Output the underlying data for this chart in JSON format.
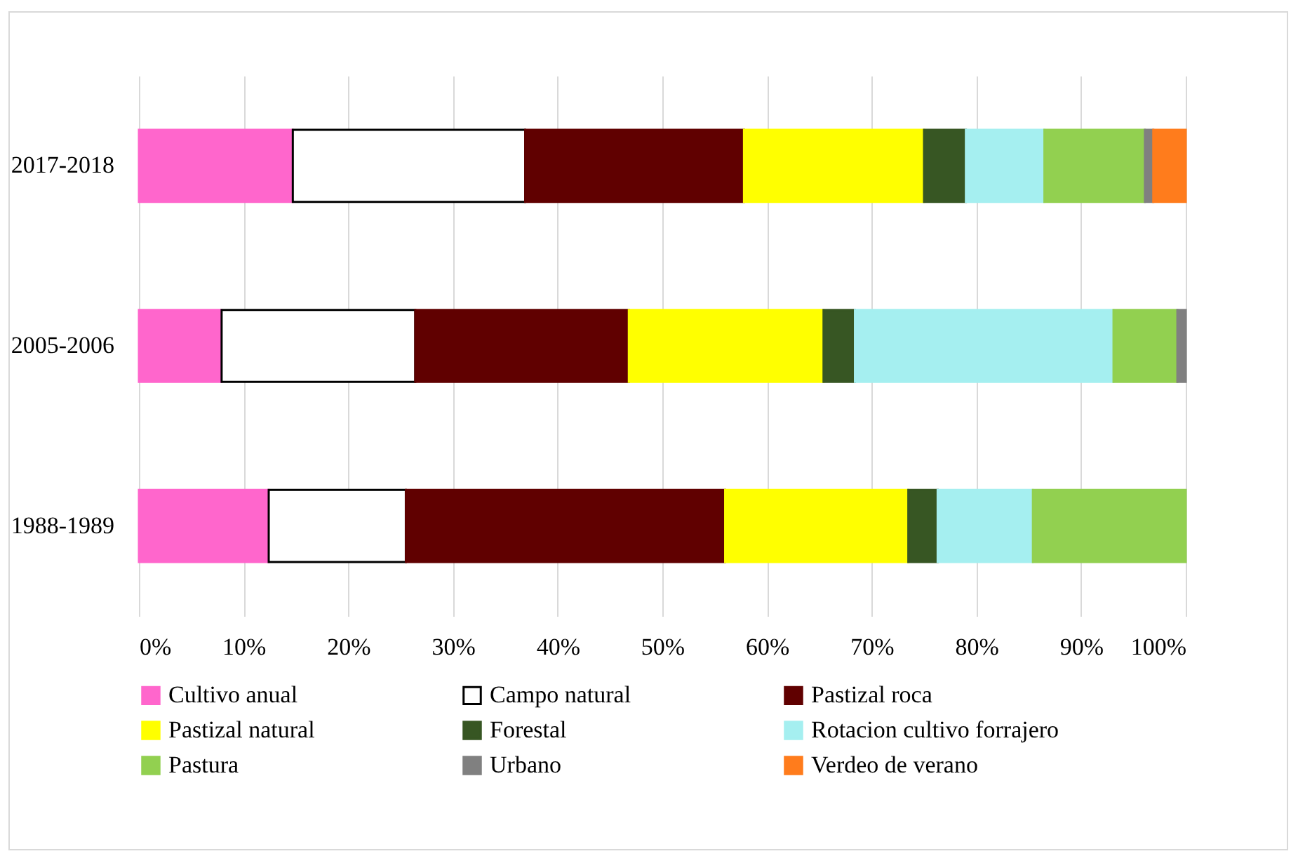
{
  "chart_data": {
    "type": "bar",
    "orientation": "horizontal",
    "stacked": true,
    "categories": [
      "2017-2018",
      "2005-2006",
      "1988-1989"
    ],
    "series": [
      {
        "name": "Cultivo anual",
        "color": "#ff66cc",
        "values": [
          14.7,
          7.9,
          12.4
        ]
      },
      {
        "name": "Campo natural",
        "color": "#ffffff",
        "values": [
          22.2,
          18.5,
          13.1
        ]
      },
      {
        "name": "Pastizal roca",
        "color": "#600000",
        "values": [
          20.9,
          20.4,
          30.5
        ]
      },
      {
        "name": "Pastizal natural",
        "color": "#ffff00",
        "values": [
          17.2,
          18.6,
          17.5
        ]
      },
      {
        "name": "Forestal",
        "color": "#375623",
        "values": [
          4.0,
          3.0,
          2.8
        ]
      },
      {
        "name": "Rotacion cultivo forrajero",
        "color": "#a5eff0",
        "values": [
          7.5,
          24.7,
          9.1
        ]
      },
      {
        "name": "Pastura",
        "color": "#92d050",
        "values": [
          9.6,
          6.1,
          14.6
        ]
      },
      {
        "name": "Urbano",
        "color": "#808080",
        "values": [
          0.8,
          0.8,
          null
        ]
      },
      {
        "name": "Verdeo de verano",
        "color": "#ff7c1c",
        "values": [
          3.1,
          null,
          null
        ]
      }
    ],
    "xlim": [
      0,
      100
    ],
    "xticks": [
      {
        "value": 0,
        "label": "0%"
      },
      {
        "value": 10,
        "label": "10%"
      },
      {
        "value": 20,
        "label": "20%"
      },
      {
        "value": 30,
        "label": "30%"
      },
      {
        "value": 40,
        "label": "40%"
      },
      {
        "value": 50,
        "label": "50%"
      },
      {
        "value": 60,
        "label": "60%"
      },
      {
        "value": 70,
        "label": "70%"
      },
      {
        "value": 80,
        "label": "80%"
      },
      {
        "value": 90,
        "label": "90%"
      },
      {
        "value": 100,
        "label": "100%"
      }
    ],
    "grid": "x",
    "legend": "bottom"
  }
}
